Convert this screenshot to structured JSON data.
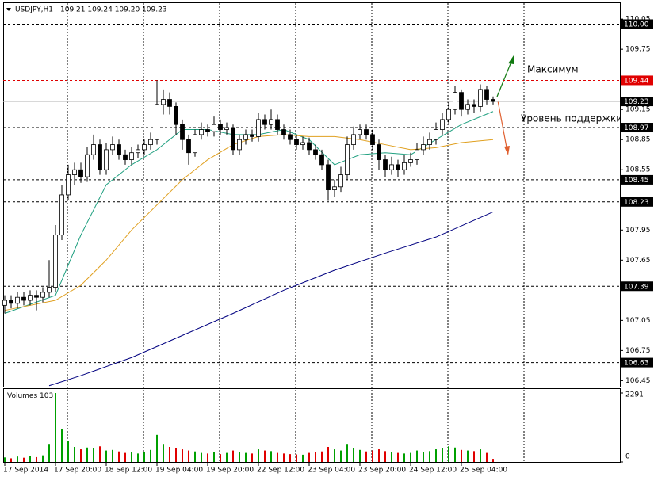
{
  "chart_data": {
    "type": "candlestick",
    "symbol": "USDJPY,H1",
    "quote": "109.21 109.24 109.20 109.23",
    "categories": [
      "17 Sep 2014",
      null,
      null,
      null,
      null,
      null,
      null,
      null,
      "17 Sep 20:00",
      null,
      null,
      null,
      null,
      null,
      null,
      null,
      "18 Sep 12:00",
      null,
      null,
      null,
      null,
      null,
      null,
      null,
      "19 Sep 04:00",
      null,
      null,
      null,
      null,
      null,
      null,
      null,
      "19 Sep 20:00",
      null,
      null,
      null,
      null,
      null,
      null,
      null,
      "22 Sep 12:00",
      null,
      null,
      null,
      null,
      null,
      null,
      null,
      "23 Sep 04:00",
      null,
      null,
      null,
      null,
      null,
      null,
      null,
      "23 Sep 20:00",
      null,
      null,
      null,
      null,
      null,
      null,
      null,
      "24 Sep 12:00",
      null,
      null,
      null,
      null,
      null,
      null,
      null,
      "25 Sep 04:00",
      null,
      null,
      null,
      null,
      null
    ],
    "open": [
      107.2,
      107.25,
      107.22,
      107.28,
      107.25,
      107.3,
      107.28,
      107.33,
      107.38,
      107.9,
      108.3,
      108.5,
      108.55,
      108.48,
      108.7,
      108.8,
      108.55,
      108.75,
      108.8,
      108.7,
      108.65,
      108.72,
      108.75,
      108.8,
      108.85,
      109.2,
      109.25,
      109.18,
      109.0,
      108.85,
      108.72,
      108.9,
      108.95,
      108.93,
      109.0,
      108.95,
      108.97,
      108.75,
      108.85,
      108.9,
      108.88,
      109.05,
      109.0,
      109.05,
      108.95,
      108.9,
      108.85,
      108.8,
      108.82,
      108.75,
      108.7,
      108.6,
      108.35,
      108.38,
      108.5,
      108.8,
      108.9,
      108.95,
      108.9,
      108.8,
      108.65,
      108.55,
      108.6,
      108.55,
      108.62,
      108.65,
      108.75,
      108.8,
      108.85,
      108.95,
      109.05,
      109.15,
      109.32,
      109.15,
      109.2,
      109.18,
      109.35,
      109.25
    ],
    "high": [
      107.3,
      107.3,
      107.33,
      107.33,
      107.35,
      107.35,
      107.38,
      107.65,
      108.0,
      108.4,
      108.6,
      108.62,
      108.62,
      108.78,
      108.9,
      108.85,
      108.82,
      108.88,
      108.85,
      108.75,
      108.78,
      108.8,
      108.85,
      108.92,
      109.44,
      109.35,
      109.32,
      109.22,
      109.05,
      108.9,
      108.95,
      109.02,
      109.0,
      109.08,
      109.05,
      109.02,
      109.0,
      108.9,
      108.95,
      108.95,
      109.12,
      109.1,
      109.15,
      109.1,
      109.0,
      108.95,
      108.9,
      108.88,
      108.87,
      108.8,
      108.75,
      108.65,
      108.45,
      108.58,
      108.88,
      108.98,
      109.0,
      109.0,
      108.95,
      108.85,
      108.7,
      108.68,
      108.65,
      108.7,
      108.72,
      108.82,
      108.88,
      108.92,
      109.02,
      109.12,
      109.22,
      109.38,
      109.35,
      109.25,
      109.25,
      109.4,
      109.38,
      109.28
    ],
    "low": [
      107.12,
      107.17,
      107.17,
      107.2,
      107.2,
      107.15,
      107.23,
      107.28,
      107.33,
      107.85,
      108.25,
      108.4,
      108.42,
      108.43,
      108.65,
      108.5,
      108.5,
      108.7,
      108.65,
      108.6,
      108.6,
      108.67,
      108.7,
      108.75,
      108.8,
      109.1,
      109.1,
      108.9,
      108.75,
      108.6,
      108.68,
      108.85,
      108.88,
      108.88,
      108.9,
      108.9,
      108.7,
      108.7,
      108.8,
      108.83,
      108.83,
      108.95,
      108.95,
      108.9,
      108.85,
      108.8,
      108.75,
      108.75,
      108.7,
      108.65,
      108.55,
      108.24,
      108.28,
      108.33,
      108.45,
      108.75,
      108.85,
      108.85,
      108.75,
      108.55,
      108.48,
      108.5,
      108.48,
      108.5,
      108.58,
      108.6,
      108.7,
      108.75,
      108.8,
      108.9,
      109.0,
      109.1,
      109.08,
      109.1,
      109.12,
      109.13,
      109.2,
      109.2
    ],
    "close": [
      107.25,
      107.22,
      107.28,
      107.25,
      107.3,
      107.28,
      107.33,
      107.38,
      107.9,
      108.3,
      108.5,
      108.55,
      108.48,
      108.7,
      108.8,
      108.55,
      108.75,
      108.8,
      108.7,
      108.65,
      108.72,
      108.75,
      108.8,
      108.85,
      109.2,
      109.25,
      109.18,
      109.0,
      108.85,
      108.72,
      108.9,
      108.95,
      108.93,
      109.0,
      108.95,
      108.97,
      108.75,
      108.85,
      108.9,
      108.88,
      109.05,
      109.0,
      109.05,
      108.95,
      108.9,
      108.85,
      108.8,
      108.82,
      108.75,
      108.7,
      108.6,
      108.35,
      108.38,
      108.5,
      108.8,
      108.9,
      108.95,
      108.9,
      108.8,
      108.65,
      108.55,
      108.6,
      108.55,
      108.62,
      108.65,
      108.75,
      108.8,
      108.85,
      108.95,
      109.05,
      109.15,
      109.32,
      109.15,
      109.2,
      109.18,
      109.35,
      109.25,
      109.23
    ],
    "up_color": "#ffffff",
    "down_color": "#000000",
    "ylim": [
      106.39,
      110.13
    ],
    "yticks": [
      106.45,
      106.75,
      107.05,
      107.65,
      107.95,
      108.55,
      108.85,
      109.15,
      109.75,
      110.05
    ],
    "levels": [
      {
        "value": 110,
        "label": "110.00",
        "color": "#000000"
      },
      {
        "value": 109.44,
        "color": "#e00000"
      },
      {
        "value": 109.23,
        "color": "#c0c0c0"
      },
      {
        "value": 108.97,
        "color": "#000000"
      },
      {
        "value": 108.45,
        "color": "#000000"
      },
      {
        "value": 108.23,
        "color": "#000000"
      },
      {
        "value": 107.39,
        "color": "#000000"
      },
      {
        "value": 106.63,
        "color": "#000000"
      }
    ],
    "moving_averages": [
      {
        "color": "#20a080",
        "x": [
          0,
          8,
          12,
          16,
          20,
          24,
          28,
          32,
          36,
          40,
          44,
          48,
          52,
          56,
          60,
          64,
          68,
          72,
          77
        ],
        "values": [
          107.12,
          107.3,
          107.9,
          108.4,
          108.6,
          108.75,
          108.95,
          108.95,
          108.9,
          108.9,
          108.95,
          108.85,
          108.6,
          108.7,
          108.72,
          108.7,
          108.85,
          109.0,
          109.13
        ]
      },
      {
        "color": "#e0a020",
        "x": [
          0,
          8,
          12,
          16,
          20,
          24,
          28,
          32,
          36,
          40,
          44,
          48,
          52,
          56,
          60,
          64,
          68,
          72,
          77
        ],
        "values": [
          107.15,
          107.25,
          107.4,
          107.65,
          107.95,
          108.2,
          108.45,
          108.65,
          108.8,
          108.88,
          108.9,
          108.88,
          108.88,
          108.85,
          108.8,
          108.75,
          108.77,
          108.82,
          108.85
        ]
      },
      {
        "color": "#000080",
        "x": [
          7,
          12,
          20,
          28,
          36,
          44,
          52,
          60,
          68,
          77
        ],
        "values": [
          106.4,
          106.5,
          106.68,
          106.9,
          107.12,
          107.35,
          107.55,
          107.72,
          107.88,
          108.13
        ]
      }
    ],
    "volume": {
      "label": "Volumes",
      "ylim": [
        0,
        2291
      ],
      "yticks": [
        0,
        2291
      ],
      "values": [
        150,
        120,
        180,
        140,
        200,
        160,
        220,
        600,
        2291,
        1100,
        700,
        500,
        420,
        480,
        450,
        520,
        380,
        400,
        350,
        300,
        320,
        280,
        340,
        400,
        900,
        600,
        500,
        450,
        420,
        380,
        350,
        300,
        280,
        320,
        260,
        300,
        380,
        340,
        300,
        280,
        420,
        380,
        360,
        300,
        280,
        260,
        250,
        240,
        300,
        320,
        350,
        500,
        420,
        380,
        600,
        450,
        400,
        350,
        380,
        420,
        360,
        320,
        300,
        280,
        300,
        380,
        340,
        360,
        420,
        460,
        520,
        480,
        400,
        380,
        360,
        420,
        300,
        103
      ]
    },
    "annotations": [
      {
        "text": "Максимум"
      },
      {
        "text": "Уровень поддержки"
      }
    ]
  }
}
